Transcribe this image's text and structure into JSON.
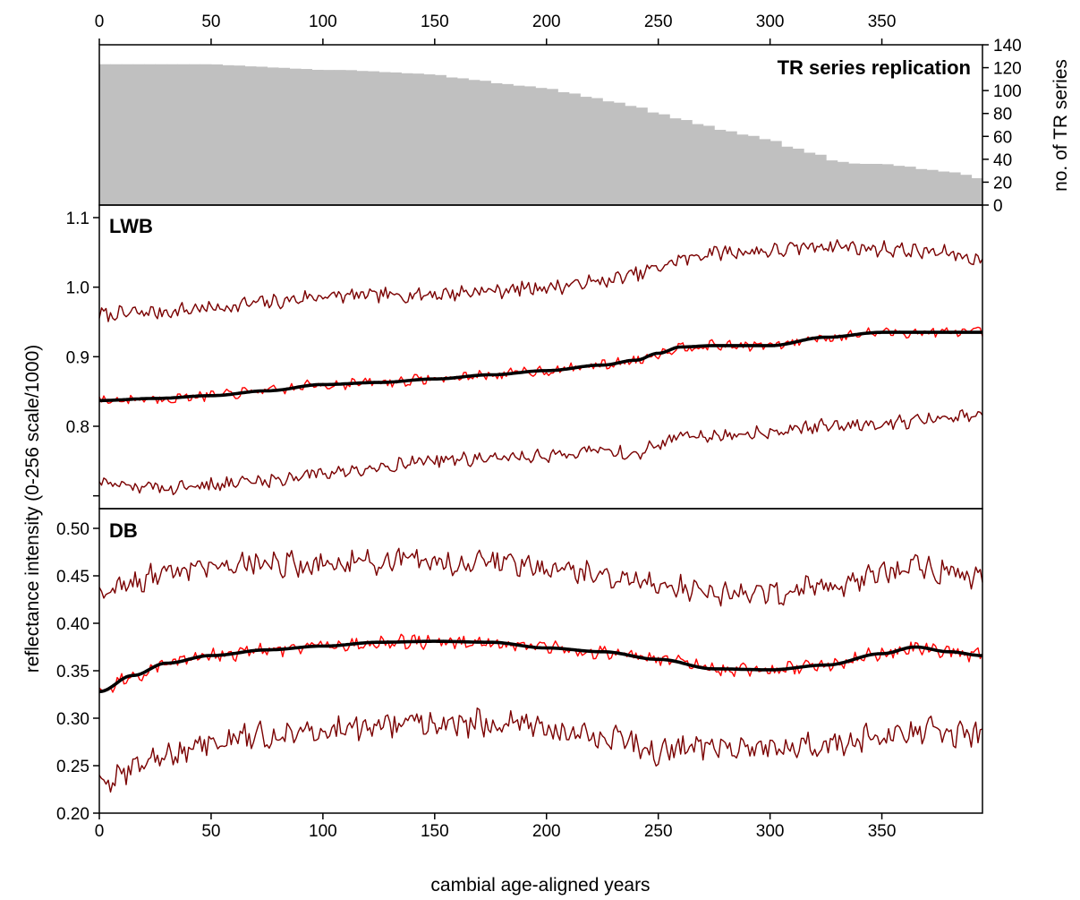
{
  "chart_data": [
    {
      "type": "bar",
      "panel": "replication",
      "title": "TR series replication",
      "ylabel": "no. of TR series",
      "xlabel": "",
      "xlim": [
        0,
        395
      ],
      "ylim": [
        0,
        140
      ],
      "x_ticks": [
        0,
        50,
        100,
        150,
        200,
        250,
        300,
        350
      ],
      "y_ticks": [
        0,
        20,
        40,
        60,
        80,
        100,
        120,
        140
      ],
      "grid": false,
      "bar_color": "#c0c0c0",
      "series": [
        {
          "values_note": "",
          "x": [
            0,
            10,
            20,
            30,
            40,
            50,
            60,
            70,
            80,
            90,
            100,
            110,
            120,
            130,
            140,
            150,
            160,
            170,
            180,
            190,
            200,
            210,
            220,
            230,
            240,
            250,
            260,
            270,
            280,
            290,
            300,
            310,
            320,
            330,
            340,
            350,
            360,
            370,
            380,
            390,
            395
          ],
          "values": [
            123,
            123,
            123,
            123,
            123,
            123,
            122,
            121,
            120,
            119,
            118,
            118,
            117,
            116,
            115,
            114,
            111,
            109,
            106,
            104,
            102,
            98,
            94,
            90,
            86,
            80,
            75,
            70,
            65,
            61,
            57,
            50,
            45,
            38,
            36,
            36,
            34,
            31,
            29,
            26,
            21
          ]
        }
      ]
    },
    {
      "type": "line",
      "panel": "LWB",
      "title": "LWB",
      "xlim": [
        0,
        395
      ],
      "ylim": [
        0.7,
        1.12
      ],
      "y_ticks": [
        0.8,
        0.9,
        1.0,
        1.1
      ],
      "y_tick_labels": [
        "0.8",
        "0.9",
        "1.0",
        "1.1"
      ],
      "grid": false,
      "series": [
        {
          "role": "upper",
          "color": "#7a0000",
          "x": [
            0,
            25,
            50,
            75,
            100,
            125,
            150,
            175,
            200,
            225,
            240,
            250,
            260,
            275,
            300,
            325,
            350,
            375,
            395
          ],
          "values": [
            0.96,
            0.964,
            0.97,
            0.978,
            0.987,
            0.988,
            0.99,
            0.995,
            1.0,
            1.008,
            1.018,
            1.028,
            1.04,
            1.05,
            1.052,
            1.06,
            1.055,
            1.05,
            1.04
          ],
          "amplitude": 0.009
        },
        {
          "role": "mean",
          "color": "#ff0000",
          "x": [
            0,
            25,
            50,
            75,
            100,
            125,
            150,
            175,
            200,
            225,
            240,
            250,
            260,
            275,
            300,
            325,
            350,
            375,
            395
          ],
          "values": [
            0.837,
            0.84,
            0.844,
            0.851,
            0.86,
            0.863,
            0.868,
            0.874,
            0.88,
            0.888,
            0.895,
            0.905,
            0.914,
            0.916,
            0.916,
            0.928,
            0.935,
            0.935,
            0.935
          ],
          "amplitude": 0.006
        },
        {
          "role": "smooth",
          "color": "#000000",
          "x": [
            0,
            25,
            50,
            75,
            100,
            125,
            150,
            175,
            200,
            225,
            240,
            250,
            260,
            275,
            300,
            325,
            350,
            375,
            395
          ],
          "values": [
            0.837,
            0.84,
            0.844,
            0.851,
            0.86,
            0.863,
            0.868,
            0.874,
            0.88,
            0.888,
            0.895,
            0.905,
            0.914,
            0.916,
            0.916,
            0.928,
            0.935,
            0.935,
            0.935
          ],
          "amplitude": 0
        },
        {
          "role": "lower",
          "color": "#7a0000",
          "x": [
            0,
            25,
            50,
            75,
            100,
            125,
            150,
            175,
            200,
            225,
            240,
            250,
            260,
            275,
            300,
            325,
            350,
            375,
            395
          ],
          "values": [
            0.716,
            0.712,
            0.716,
            0.722,
            0.733,
            0.742,
            0.752,
            0.753,
            0.758,
            0.765,
            0.76,
            0.772,
            0.79,
            0.785,
            0.793,
            0.8,
            0.805,
            0.81,
            0.815
          ],
          "amplitude": 0.008
        }
      ]
    },
    {
      "type": "line",
      "panel": "DB",
      "title": "DB",
      "xlabel": "cambial age-aligned years",
      "xlim": [
        0,
        395
      ],
      "ylim": [
        0.2,
        0.515
      ],
      "x_ticks": [
        0,
        50,
        100,
        150,
        200,
        250,
        300,
        350
      ],
      "y_ticks": [
        0.2,
        0.25,
        0.3,
        0.35,
        0.4,
        0.45,
        0.5
      ],
      "y_tick_labels": [
        "0.20",
        "0.25",
        "0.30",
        "0.35",
        "0.40",
        "0.45",
        "0.50"
      ],
      "grid": false,
      "series": [
        {
          "role": "upper",
          "color": "#7a0000",
          "x": [
            0,
            15,
            30,
            50,
            75,
            100,
            125,
            150,
            175,
            200,
            225,
            250,
            275,
            300,
            325,
            350,
            365,
            380,
            395
          ],
          "values": [
            0.43,
            0.44,
            0.455,
            0.462,
            0.463,
            0.462,
            0.465,
            0.463,
            0.465,
            0.46,
            0.45,
            0.442,
            0.432,
            0.432,
            0.44,
            0.452,
            0.46,
            0.455,
            0.445
          ],
          "amplitude": 0.011
        },
        {
          "role": "mean",
          "color": "#ff0000",
          "x": [
            0,
            15,
            30,
            50,
            75,
            100,
            125,
            150,
            175,
            200,
            225,
            250,
            275,
            300,
            325,
            350,
            365,
            380,
            395
          ],
          "values": [
            0.328,
            0.345,
            0.358,
            0.366,
            0.372,
            0.376,
            0.38,
            0.381,
            0.38,
            0.374,
            0.37,
            0.362,
            0.352,
            0.351,
            0.356,
            0.368,
            0.375,
            0.37,
            0.366
          ],
          "amplitude": 0.006
        },
        {
          "role": "smooth",
          "color": "#000000",
          "x": [
            0,
            15,
            30,
            50,
            75,
            100,
            125,
            150,
            175,
            200,
            225,
            250,
            275,
            300,
            325,
            350,
            365,
            380,
            395
          ],
          "values": [
            0.328,
            0.345,
            0.358,
            0.366,
            0.372,
            0.376,
            0.38,
            0.381,
            0.38,
            0.374,
            0.37,
            0.362,
            0.352,
            0.351,
            0.356,
            0.368,
            0.375,
            0.37,
            0.366
          ],
          "amplitude": 0
        },
        {
          "role": "lower",
          "color": "#7a0000",
          "x": [
            0,
            15,
            30,
            50,
            75,
            100,
            125,
            150,
            175,
            200,
            225,
            250,
            275,
            300,
            325,
            350,
            365,
            380,
            395
          ],
          "values": [
            0.228,
            0.248,
            0.262,
            0.272,
            0.283,
            0.287,
            0.292,
            0.295,
            0.294,
            0.288,
            0.282,
            0.265,
            0.272,
            0.27,
            0.272,
            0.282,
            0.288,
            0.285,
            0.28
          ],
          "amplitude": 0.012
        }
      ]
    }
  ],
  "shared": {
    "ylabel": "reflectance intensity (0-256 scale/1000)",
    "top_x_tick_labels": [
      "0",
      "50",
      "100",
      "150",
      "200",
      "250",
      "300",
      "350"
    ],
    "bottom_x_tick_labels": [
      "0",
      "50",
      "100",
      "150",
      "200",
      "250",
      "300",
      "350"
    ],
    "replication_y_tick_labels": [
      "0",
      "20",
      "40",
      "60",
      "80",
      "100",
      "120",
      "140"
    ]
  }
}
